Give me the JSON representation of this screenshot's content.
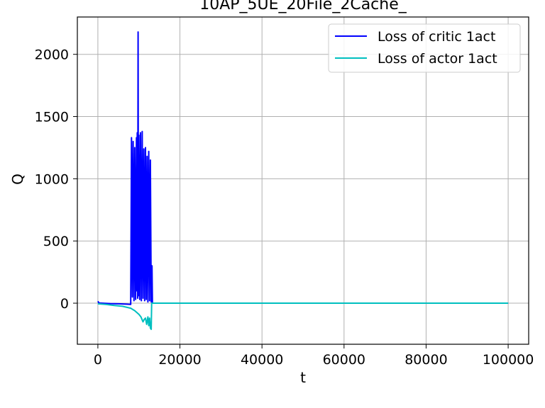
{
  "chart_data": {
    "type": "line",
    "title": "10AP_5UE_20File_2Cache_",
    "xlabel": "t",
    "ylabel": "Q",
    "xlim": [
      -5000,
      105000
    ],
    "ylim": [
      -330,
      2300
    ],
    "x_ticks": [
      0,
      20000,
      40000,
      60000,
      80000,
      100000
    ],
    "x_tick_labels": [
      "0",
      "20000",
      "40000",
      "60000",
      "80000",
      "100000"
    ],
    "y_ticks": [
      0,
      500,
      1000,
      1500,
      2000
    ],
    "y_tick_labels": [
      "0",
      "500",
      "1000",
      "1500",
      "2000"
    ],
    "grid": true,
    "legend_position": "top-right",
    "series": [
      {
        "name": "Loss of critic 1act",
        "color": "#0000ff",
        "x": [
          0,
          300,
          1000,
          3000,
          5000,
          7000,
          8000,
          8200,
          8400,
          8600,
          8800,
          9000,
          9200,
          9400,
          9500,
          9600,
          9700,
          9800,
          9900,
          10000,
          10200,
          10400,
          10600,
          10800,
          11000,
          11200,
          11400,
          11600,
          11800,
          12000,
          12200,
          12400,
          12600,
          12800,
          13000,
          13200,
          13300,
          14000,
          20000,
          40000,
          60000,
          80000,
          100000
        ],
        "y": [
          15,
          2,
          0,
          -3,
          -5,
          -8,
          -10,
          1330,
          50,
          1300,
          20,
          1250,
          30,
          1330,
          100,
          1370,
          40,
          2180,
          60,
          1350,
          30,
          1370,
          20,
          1380,
          40,
          1240,
          20,
          1250,
          30,
          1180,
          10,
          1220,
          20,
          1150,
          10,
          300,
          0,
          0,
          0,
          0,
          0,
          0,
          0
        ]
      },
      {
        "name": "Loss of actor 1act",
        "color": "#00bfbf",
        "x": [
          0,
          2000,
          4000,
          6000,
          8000,
          9000,
          10000,
          10500,
          11000,
          11300,
          11600,
          11900,
          12200,
          12400,
          12600,
          12800,
          13000,
          13100,
          13200,
          14000,
          20000,
          40000,
          60000,
          80000,
          100000
        ],
        "y": [
          -5,
          -10,
          -18,
          -25,
          -40,
          -60,
          -90,
          -110,
          -150,
          -130,
          -120,
          -170,
          -110,
          -180,
          -120,
          -200,
          -210,
          -5,
          0,
          0,
          0,
          0,
          0,
          0,
          0
        ]
      }
    ]
  }
}
